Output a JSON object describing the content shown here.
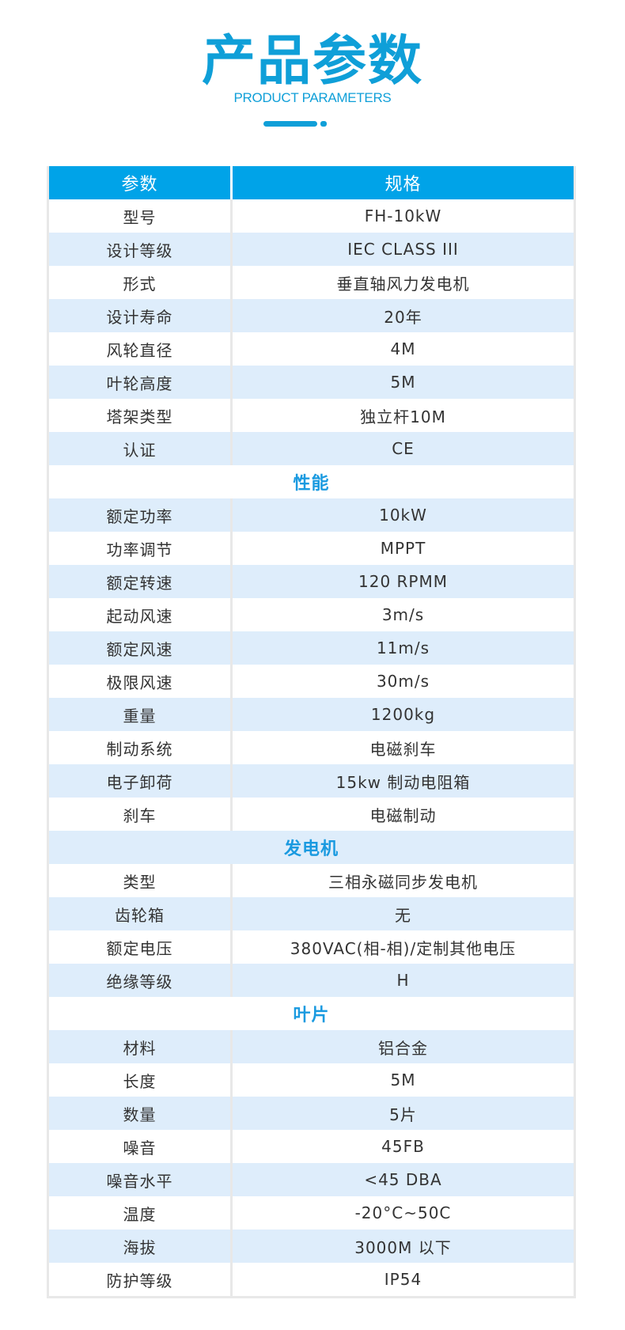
{
  "header": {
    "title": "产品参数",
    "subtitle": "PRODUCT PARAMETERS"
  },
  "colors": {
    "accent": "#00a3e8",
    "alt_row": "#deedfb",
    "section_text": "#1a9ae0"
  },
  "table": {
    "columns": [
      "参数",
      "规格"
    ],
    "rows": [
      {
        "param": "型号",
        "value": "FH-10kW"
      },
      {
        "param": "设计等级",
        "value": "IEC CLASS III"
      },
      {
        "param": "形式",
        "value": "垂直轴风力发电机"
      },
      {
        "param": "设计寿命",
        "value": "20年"
      },
      {
        "param": "风轮直径",
        "value": "4M"
      },
      {
        "param": "叶轮高度",
        "value": "5M"
      },
      {
        "param": "塔架类型",
        "value": "独立杆10M"
      },
      {
        "param": "认证",
        "value": "CE"
      },
      {
        "section": "性能"
      },
      {
        "param": "额定功率",
        "value": "10kW"
      },
      {
        "param": "功率调节",
        "value": "MPPT"
      },
      {
        "param": "额定转速",
        "value": "120 RPMM"
      },
      {
        "param": "起动风速",
        "value": "3m/s"
      },
      {
        "param": "额定风速",
        "value": "11m/s"
      },
      {
        "param": "极限风速",
        "value": "30m/s"
      },
      {
        "param": "重量",
        "value": "1200kg"
      },
      {
        "param": "制动系统",
        "value": "电磁刹车"
      },
      {
        "param": "电子卸荷",
        "value": "15kw 制动电阻箱"
      },
      {
        "param": "刹车",
        "value": "电磁制动"
      },
      {
        "section": "发电机"
      },
      {
        "param": "类型",
        "value": "三相永磁同步发电机"
      },
      {
        "param": "齿轮箱",
        "value": "无"
      },
      {
        "param": "额定电压",
        "value": "380VAC(相-相)/定制其他电压"
      },
      {
        "param": "绝缘等级",
        "value": "H"
      },
      {
        "section": "叶片"
      },
      {
        "param": "材料",
        "value": "铝合金"
      },
      {
        "param": "长度",
        "value": "5M"
      },
      {
        "param": "数量",
        "value": "5片"
      },
      {
        "param": "噪音",
        "value": "45FB"
      },
      {
        "param": "噪音水平",
        "value": "<45 DBA"
      },
      {
        "param": "温度",
        "value": "-20°C~50C"
      },
      {
        "param": "海拔",
        "value": "3000M 以下"
      },
      {
        "param": "防护等级",
        "value": "IP54"
      }
    ]
  }
}
